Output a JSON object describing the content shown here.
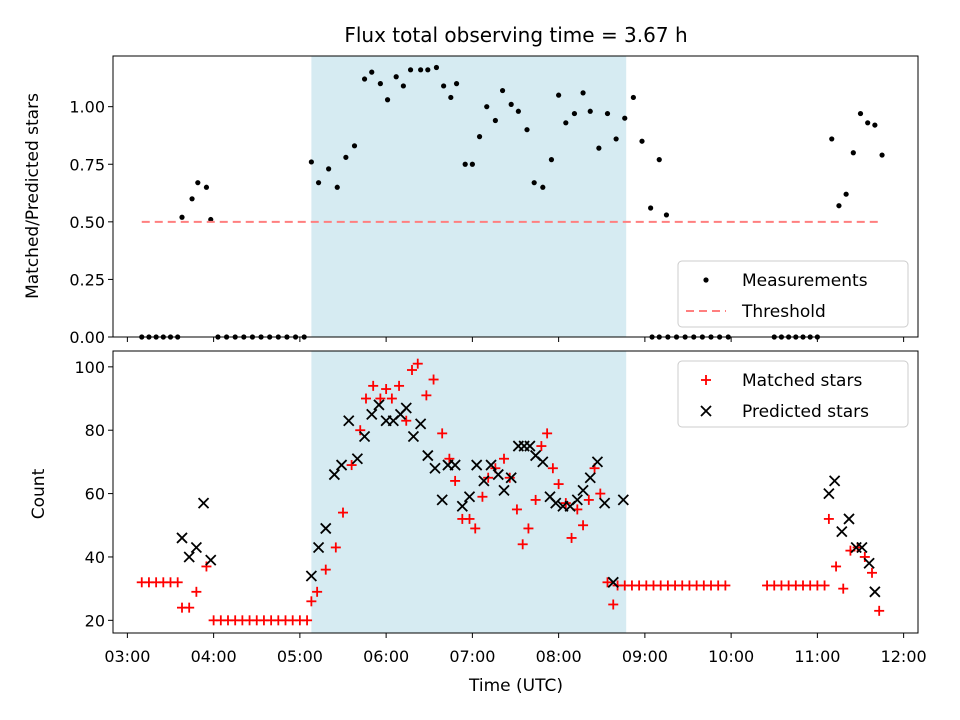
{
  "figure": {
    "title": "Flux total observing time = 3.67 h"
  },
  "chart_data": [
    {
      "type": "scatter",
      "ylabel": "Matched/Predicted stars",
      "xlabel": "",
      "ylim": [
        0,
        1.22
      ],
      "yticks": [
        "0.00",
        "0.25",
        "0.50",
        "0.75",
        "1.00"
      ],
      "xlim": [
        "02:50",
        "12:10"
      ],
      "grid": false,
      "legend_position": "lower right",
      "shaded_interval": {
        "start": "05:08",
        "end": "08:47",
        "color": "#add8e6"
      },
      "series": [
        {
          "name": "Measurements",
          "marker": "dot",
          "color": "#000000",
          "points": [
            [
              "03:10",
              0
            ],
            [
              "03:15",
              0
            ],
            [
              "03:20",
              0
            ],
            [
              "03:25",
              0
            ],
            [
              "03:30",
              0
            ],
            [
              "03:35",
              0
            ],
            [
              "03:38",
              0.52
            ],
            [
              "03:45",
              0.6
            ],
            [
              "03:49",
              0.67
            ],
            [
              "03:55",
              0.65
            ],
            [
              "03:58",
              0.51
            ],
            [
              "04:03",
              0
            ],
            [
              "04:09",
              0
            ],
            [
              "04:15",
              0
            ],
            [
              "04:21",
              0
            ],
            [
              "04:27",
              0
            ],
            [
              "04:33",
              0
            ],
            [
              "04:39",
              0
            ],
            [
              "04:45",
              0
            ],
            [
              "04:51",
              0
            ],
            [
              "04:57",
              0
            ],
            [
              "05:03",
              0
            ],
            [
              "05:08",
              0.76
            ],
            [
              "05:13",
              0.67
            ],
            [
              "05:20",
              0.73
            ],
            [
              "05:26",
              0.65
            ],
            [
              "05:32",
              0.78
            ],
            [
              "05:38",
              0.83
            ],
            [
              "05:45",
              1.12
            ],
            [
              "05:50",
              1.15
            ],
            [
              "05:56",
              1.1
            ],
            [
              "06:01",
              1.03
            ],
            [
              "06:07",
              1.13
            ],
            [
              "06:12",
              1.09
            ],
            [
              "06:17",
              1.16
            ],
            [
              "06:24",
              1.16
            ],
            [
              "06:29",
              1.16
            ],
            [
              "06:35",
              1.17
            ],
            [
              "06:40",
              1.09
            ],
            [
              "06:45",
              1.04
            ],
            [
              "06:49",
              1.1
            ],
            [
              "06:55",
              0.75
            ],
            [
              "07:00",
              0.75
            ],
            [
              "07:05",
              0.87
            ],
            [
              "07:10",
              1.0
            ],
            [
              "07:16",
              0.94
            ],
            [
              "07:21",
              1.07
            ],
            [
              "07:27",
              1.01
            ],
            [
              "07:32",
              0.98
            ],
            [
              "07:38",
              0.9
            ],
            [
              "07:43",
              0.67
            ],
            [
              "07:49",
              0.65
            ],
            [
              "07:55",
              0.77
            ],
            [
              "08:00",
              1.05
            ],
            [
              "08:05",
              0.93
            ],
            [
              "08:11",
              0.97
            ],
            [
              "08:17",
              1.06
            ],
            [
              "08:22",
              0.98
            ],
            [
              "08:28",
              0.82
            ],
            [
              "08:34",
              0.97
            ],
            [
              "08:40",
              0.86
            ],
            [
              "08:46",
              0.95
            ],
            [
              "08:52",
              1.04
            ],
            [
              "08:58",
              0.85
            ],
            [
              "09:04",
              0.56
            ],
            [
              "09:10",
              0.77
            ],
            [
              "09:15",
              0.53
            ],
            [
              "09:05",
              0
            ],
            [
              "09:10",
              0
            ],
            [
              "09:16",
              0
            ],
            [
              "09:22",
              0
            ],
            [
              "09:28",
              0
            ],
            [
              "09:34",
              0
            ],
            [
              "09:40",
              0
            ],
            [
              "09:46",
              0
            ],
            [
              "09:52",
              0
            ],
            [
              "09:58",
              0
            ],
            [
              "10:30",
              0
            ],
            [
              "10:35",
              0
            ],
            [
              "10:40",
              0
            ],
            [
              "10:45",
              0
            ],
            [
              "10:50",
              0
            ],
            [
              "10:55",
              0
            ],
            [
              "11:00",
              0
            ],
            [
              "11:10",
              0.86
            ],
            [
              "11:15",
              0.57
            ],
            [
              "11:20",
              0.62
            ],
            [
              "11:25",
              0.8
            ],
            [
              "11:30",
              0.97
            ],
            [
              "11:35",
              0.93
            ],
            [
              "11:40",
              0.92
            ],
            [
              "11:45",
              0.79
            ]
          ]
        },
        {
          "name": "Threshold",
          "marker": "dashed-line",
          "color": "#ff7f7f",
          "points": [
            [
              "03:10",
              0.5
            ],
            [
              "11:45",
              0.5
            ]
          ]
        }
      ]
    },
    {
      "type": "scatter",
      "ylabel": "Count",
      "xlabel": "Time (UTC)",
      "ylim": [
        16,
        105
      ],
      "yticks": [
        "20",
        "40",
        "60",
        "80",
        "100"
      ],
      "xlim": [
        "02:50",
        "12:10"
      ],
      "xticks": [
        "03:00",
        "04:00",
        "05:00",
        "06:00",
        "07:00",
        "08:00",
        "09:00",
        "10:00",
        "11:00",
        "12:00"
      ],
      "grid": false,
      "legend_position": "upper right",
      "shaded_interval": {
        "start": "05:08",
        "end": "08:47",
        "color": "#add8e6"
      },
      "series": [
        {
          "name": "Matched stars",
          "marker": "plus",
          "color": "#ff0000",
          "points": [
            [
              "03:10",
              32
            ],
            [
              "03:15",
              32
            ],
            [
              "03:20",
              32
            ],
            [
              "03:25",
              32
            ],
            [
              "03:30",
              32
            ],
            [
              "03:35",
              32
            ],
            [
              "03:38",
              24
            ],
            [
              "03:43",
              24
            ],
            [
              "03:48",
              29
            ],
            [
              "03:55",
              37
            ],
            [
              "04:00",
              20
            ],
            [
              "04:05",
              20
            ],
            [
              "04:10",
              20
            ],
            [
              "04:15",
              20
            ],
            [
              "04:20",
              20
            ],
            [
              "04:25",
              20
            ],
            [
              "04:30",
              20
            ],
            [
              "04:35",
              20
            ],
            [
              "04:40",
              20
            ],
            [
              "04:45",
              20
            ],
            [
              "04:50",
              20
            ],
            [
              "04:55",
              20
            ],
            [
              "05:00",
              20
            ],
            [
              "05:05",
              20
            ],
            [
              "05:08",
              26
            ],
            [
              "05:12",
              29
            ],
            [
              "05:18",
              36
            ],
            [
              "05:25",
              43
            ],
            [
              "05:30",
              54
            ],
            [
              "05:36",
              69
            ],
            [
              "05:42",
              80
            ],
            [
              "05:46",
              90
            ],
            [
              "05:51",
              94
            ],
            [
              "05:56",
              90
            ],
            [
              "06:00",
              93
            ],
            [
              "06:04",
              90
            ],
            [
              "06:09",
              94
            ],
            [
              "06:14",
              83
            ],
            [
              "06:18",
              99
            ],
            [
              "06:22",
              101
            ],
            [
              "06:28",
              91
            ],
            [
              "06:33",
              96
            ],
            [
              "06:39",
              79
            ],
            [
              "06:44",
              71
            ],
            [
              "06:48",
              64
            ],
            [
              "06:53",
              52
            ],
            [
              "06:58",
              52
            ],
            [
              "07:02",
              49
            ],
            [
              "07:07",
              59
            ],
            [
              "07:11",
              65
            ],
            [
              "07:16",
              68
            ],
            [
              "07:22",
              71
            ],
            [
              "07:26",
              65
            ],
            [
              "07:31",
              55
            ],
            [
              "07:35",
              44
            ],
            [
              "07:39",
              49
            ],
            [
              "07:44",
              58
            ],
            [
              "07:48",
              75
            ],
            [
              "07:52",
              79
            ],
            [
              "07:56",
              68
            ],
            [
              "08:00",
              63
            ],
            [
              "08:05",
              57
            ],
            [
              "08:09",
              46
            ],
            [
              "08:13",
              55
            ],
            [
              "08:17",
              50
            ],
            [
              "08:21",
              58
            ],
            [
              "08:25",
              68
            ],
            [
              "08:29",
              60
            ],
            [
              "08:34",
              32
            ],
            [
              "08:38",
              25
            ],
            [
              "08:41",
              31
            ],
            [
              "08:46",
              31
            ],
            [
              "08:51",
              31
            ],
            [
              "08:56",
              31
            ],
            [
              "09:01",
              31
            ],
            [
              "09:06",
              31
            ],
            [
              "09:11",
              31
            ],
            [
              "09:16",
              31
            ],
            [
              "09:21",
              31
            ],
            [
              "09:26",
              31
            ],
            [
              "09:31",
              31
            ],
            [
              "09:36",
              31
            ],
            [
              "09:41",
              31
            ],
            [
              "09:46",
              31
            ],
            [
              "09:51",
              31
            ],
            [
              "09:56",
              31
            ],
            [
              "10:25",
              31
            ],
            [
              "10:30",
              31
            ],
            [
              "10:35",
              31
            ],
            [
              "10:40",
              31
            ],
            [
              "10:45",
              31
            ],
            [
              "10:50",
              31
            ],
            [
              "10:55",
              31
            ],
            [
              "11:00",
              31
            ],
            [
              "11:05",
              31
            ],
            [
              "11:08",
              52
            ],
            [
              "11:13",
              37
            ],
            [
              "11:18",
              30
            ],
            [
              "11:23",
              42
            ],
            [
              "11:28",
              43
            ],
            [
              "11:33",
              40
            ],
            [
              "11:38",
              35
            ],
            [
              "11:43",
              23
            ]
          ]
        },
        {
          "name": "Predicted stars",
          "marker": "x",
          "color": "#000000",
          "points": [
            [
              "03:38",
              46
            ],
            [
              "03:43",
              40
            ],
            [
              "03:48",
              43
            ],
            [
              "03:53",
              57
            ],
            [
              "03:58",
              39
            ],
            [
              "05:08",
              34
            ],
            [
              "05:13",
              43
            ],
            [
              "05:18",
              49
            ],
            [
              "05:24",
              66
            ],
            [
              "05:29",
              69
            ],
            [
              "05:34",
              83
            ],
            [
              "05:40",
              71
            ],
            [
              "05:45",
              78
            ],
            [
              "05:50",
              85
            ],
            [
              "05:55",
              88
            ],
            [
              "06:00",
              83
            ],
            [
              "06:05",
              83
            ],
            [
              "06:10",
              85
            ],
            [
              "06:14",
              87
            ],
            [
              "06:19",
              78
            ],
            [
              "06:24",
              82
            ],
            [
              "06:29",
              72
            ],
            [
              "06:34",
              68
            ],
            [
              "06:39",
              58
            ],
            [
              "06:43",
              69
            ],
            [
              "06:48",
              69
            ],
            [
              "06:53",
              56
            ],
            [
              "06:58",
              59
            ],
            [
              "07:03",
              69
            ],
            [
              "07:08",
              64
            ],
            [
              "07:13",
              69
            ],
            [
              "07:18",
              66
            ],
            [
              "07:22",
              61
            ],
            [
              "07:27",
              65
            ],
            [
              "07:32",
              75
            ],
            [
              "07:36",
              75
            ],
            [
              "07:40",
              75
            ],
            [
              "07:44",
              72
            ],
            [
              "07:49",
              70
            ],
            [
              "07:54",
              59
            ],
            [
              "07:58",
              57
            ],
            [
              "08:03",
              56
            ],
            [
              "08:08",
              56
            ],
            [
              "08:13",
              58
            ],
            [
              "08:17",
              61
            ],
            [
              "08:22",
              65
            ],
            [
              "08:27",
              70
            ],
            [
              "08:32",
              57
            ],
            [
              "08:38",
              32
            ],
            [
              "08:45",
              58
            ],
            [
              "11:08",
              60
            ],
            [
              "11:12",
              64
            ],
            [
              "11:17",
              48
            ],
            [
              "11:22",
              52
            ],
            [
              "11:27",
              43
            ],
            [
              "11:31",
              43
            ],
            [
              "11:36",
              38
            ],
            [
              "11:40",
              29
            ]
          ]
        }
      ]
    }
  ]
}
